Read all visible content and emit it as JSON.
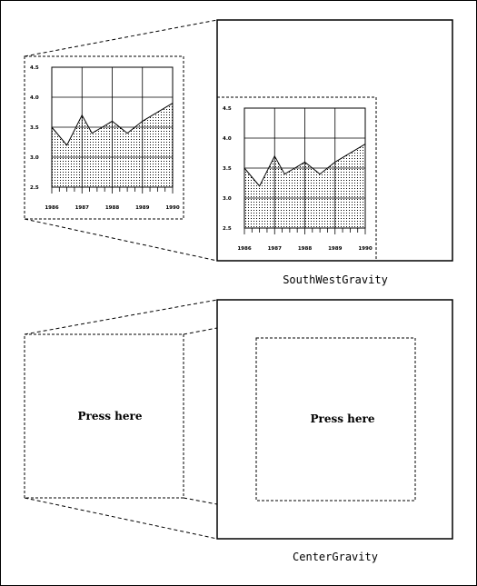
{
  "panels": [
    {
      "gravity_label": "SouthWestGravity",
      "chart_data": {
        "type": "area",
        "x": [
          1986,
          1986.5,
          1987,
          1987.33,
          1987.67,
          1988,
          1988.5,
          1989,
          1990
        ],
        "values": [
          3.5,
          3.2,
          3.7,
          3.4,
          3.5,
          3.6,
          3.4,
          3.6,
          3.9
        ],
        "xticks": [
          "1986",
          "1987",
          "1988",
          "1989",
          "1990"
        ],
        "yticks": [
          "2.5",
          "3.0",
          "3.5",
          "4.0",
          "4.5"
        ],
        "xlim": [
          1986,
          1990
        ],
        "ylim": [
          2.5,
          4.5
        ],
        "grid": true
      }
    },
    {
      "gravity_label": "CenterGravity",
      "button_label": "Press here"
    }
  ]
}
